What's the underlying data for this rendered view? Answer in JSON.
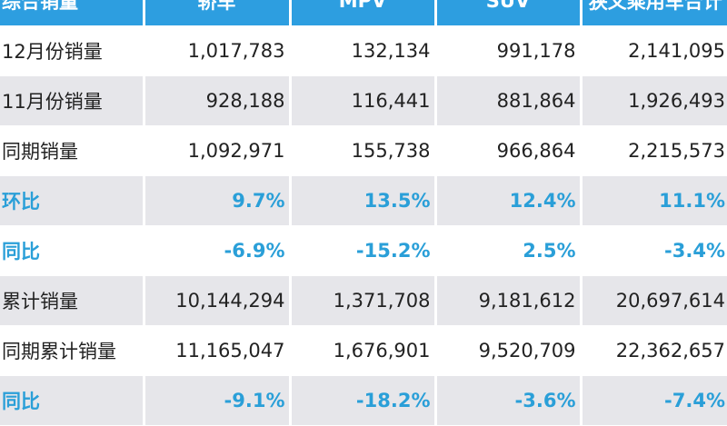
{
  "table": {
    "header": [
      "综合销量",
      "轿车",
      "MPV",
      "SUV",
      "狭义乘用车合计"
    ],
    "rows": [
      [
        "12月份销量",
        "1,017,783",
        "132,134",
        "991,178",
        "2,141,095"
      ],
      [
        "11月份销量",
        "928,188",
        "116,441",
        "881,864",
        "1,926,493"
      ],
      [
        "同期销量",
        "1,092,971",
        "155,738",
        "966,864",
        "2,215,573"
      ],
      [
        "环比",
        "9.7%",
        "13.5%",
        "12.4%",
        "11.1%"
      ],
      [
        "同比",
        "-6.9%",
        "-15.2%",
        "2.5%",
        "-3.4%"
      ],
      [
        "累计销量",
        "10,144,294",
        "1,371,708",
        "9,181,612",
        "20,697,614"
      ],
      [
        "同期累计销量",
        "11,165,047",
        "1,676,901",
        "9,520,709",
        "22,362,657"
      ],
      [
        "同比",
        "-9.1%",
        "-18.2%",
        "-3.6%",
        "-7.4%"
      ]
    ]
  }
}
